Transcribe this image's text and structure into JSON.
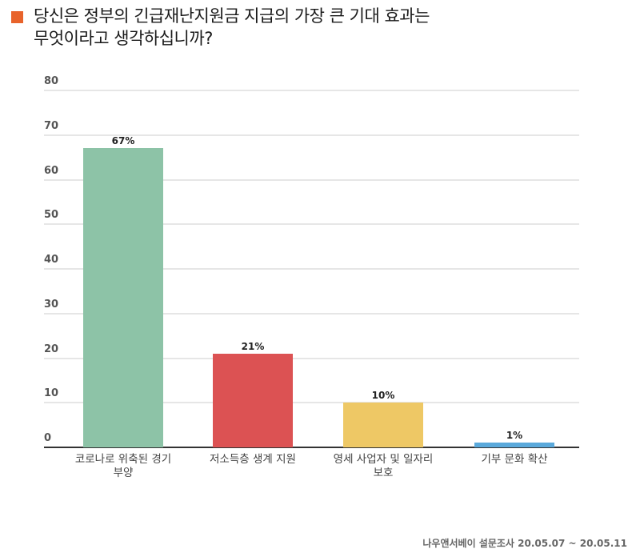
{
  "header": {
    "title": "당신은 정부의 긴급재난지원금 지급의 가장 큰 기대 효과는\n무엇이라고 생각하십니까?",
    "title_line1": "당신은 정부의 긴급재난지원금 지급의 가장 큰 기대 효과는",
    "title_line2": "무엇이라고 생각하십니까?",
    "marker_color": "#E8632B"
  },
  "footer": {
    "source": "나우앤서베이 설문조사 20.05.07 ~ 20.05.11"
  },
  "chart_data": {
    "type": "bar",
    "title": "당신은 정부의 긴급재난지원금 지급의 가장 큰 기대 효과는 무엇이라고 생각하십니까?",
    "categories": [
      "코로나로 위축된 경기 부양",
      "저소득층 생계 지원",
      "영세 사업자 및 일자리 보호",
      "기부 문화 확산"
    ],
    "category_lines": [
      [
        "코로나로 위축된 경기",
        "부양"
      ],
      [
        "저소득층 생계 지원"
      ],
      [
        "영세 사업자 및 일자리",
        "보호"
      ],
      [
        "기부 문화 확산"
      ]
    ],
    "values": [
      67,
      21,
      10,
      1
    ],
    "value_labels": [
      "67%",
      "21%",
      "10%",
      "1%"
    ],
    "colors": [
      "#8DC3A7",
      "#DC5253",
      "#EEC865",
      "#5AA9DB"
    ],
    "xlabel": "",
    "ylabel": "",
    "ylim": [
      0,
      80
    ],
    "yticks": [
      0,
      10,
      20,
      30,
      40,
      50,
      60,
      70,
      80
    ],
    "grid": true,
    "legend": "none",
    "source": "나우앤서베이 설문조사 20.05.07 ~ 20.05.11"
  }
}
